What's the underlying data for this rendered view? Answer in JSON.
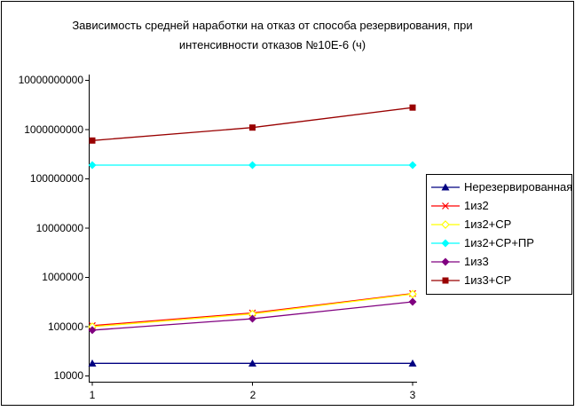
{
  "title": {
    "line1": "Зависимость средней наработки на отказ от способа резервирования, при",
    "line2": "интенсивности отказов №10Е-6 (ч)"
  },
  "chart_data": {
    "type": "line",
    "x": [
      1,
      2,
      3
    ],
    "x_tick_labels": [
      "1",
      "2",
      "3"
    ],
    "y_scale": "log",
    "ylim": [
      10000,
      10000000000
    ],
    "y_tick_labels": [
      "10000000000",
      "1000000000",
      "100000000",
      "10000000",
      "1000000",
      "100000",
      "10000"
    ],
    "grid": false,
    "legend_position": "right",
    "series": [
      {
        "name": "Нерезервированная",
        "color": "#000080",
        "marker": "triangle",
        "values": [
          18000,
          18000,
          18000
        ]
      },
      {
        "name": "1из2",
        "color": "#ff0000",
        "marker": "x",
        "values": [
          105000,
          190000,
          470000
        ]
      },
      {
        "name": "1из2+СР",
        "color": "#ffff00",
        "marker": "diamond-open",
        "values": [
          100000,
          182000,
          460000
        ]
      },
      {
        "name": "1из2+СР+ПР",
        "color": "#00ffff",
        "marker": "diamond",
        "values": [
          190000000,
          190000000,
          190000000
        ]
      },
      {
        "name": "1из3",
        "color": "#800080",
        "marker": "diamond",
        "values": [
          85000,
          145000,
          320000
        ]
      },
      {
        "name": "1из3+СР",
        "color": "#990000",
        "marker": "square",
        "values": [
          600000000,
          1100000000,
          2800000000
        ]
      }
    ]
  }
}
